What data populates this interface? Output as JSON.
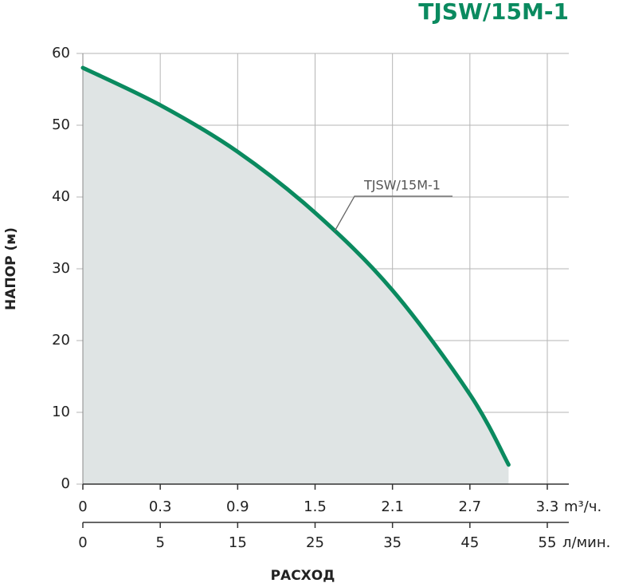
{
  "chart_data": {
    "type": "line",
    "title": "TJSW/15M-1",
    "annotation": "TJSW/15M-1",
    "ylabel": "НАПОР (м)",
    "xlabel": "РАСХОД",
    "x_unit": "л/мин.",
    "x2_unit": "m³/ч.",
    "x": [
      0,
      5,
      15,
      25,
      35,
      45,
      50
    ],
    "series": [
      {
        "name": "TJSW/15M-1",
        "color": "#0a8a5f",
        "values": [
          58,
          52.8,
          46.3,
          37.8,
          27,
          12.5,
          2.7
        ]
      }
    ],
    "xlim": [
      0,
      55
    ],
    "xticks": [
      0,
      5,
      15,
      25,
      35,
      45,
      55
    ],
    "x2ticks": [
      0,
      0.3,
      0.9,
      1.5,
      2.1,
      2.7,
      3.3
    ],
    "ylim": [
      0,
      60
    ],
    "yticks": [
      0,
      10,
      20,
      30,
      40,
      50,
      60
    ],
    "grid": true,
    "fill_color": "#dfe4e4"
  }
}
